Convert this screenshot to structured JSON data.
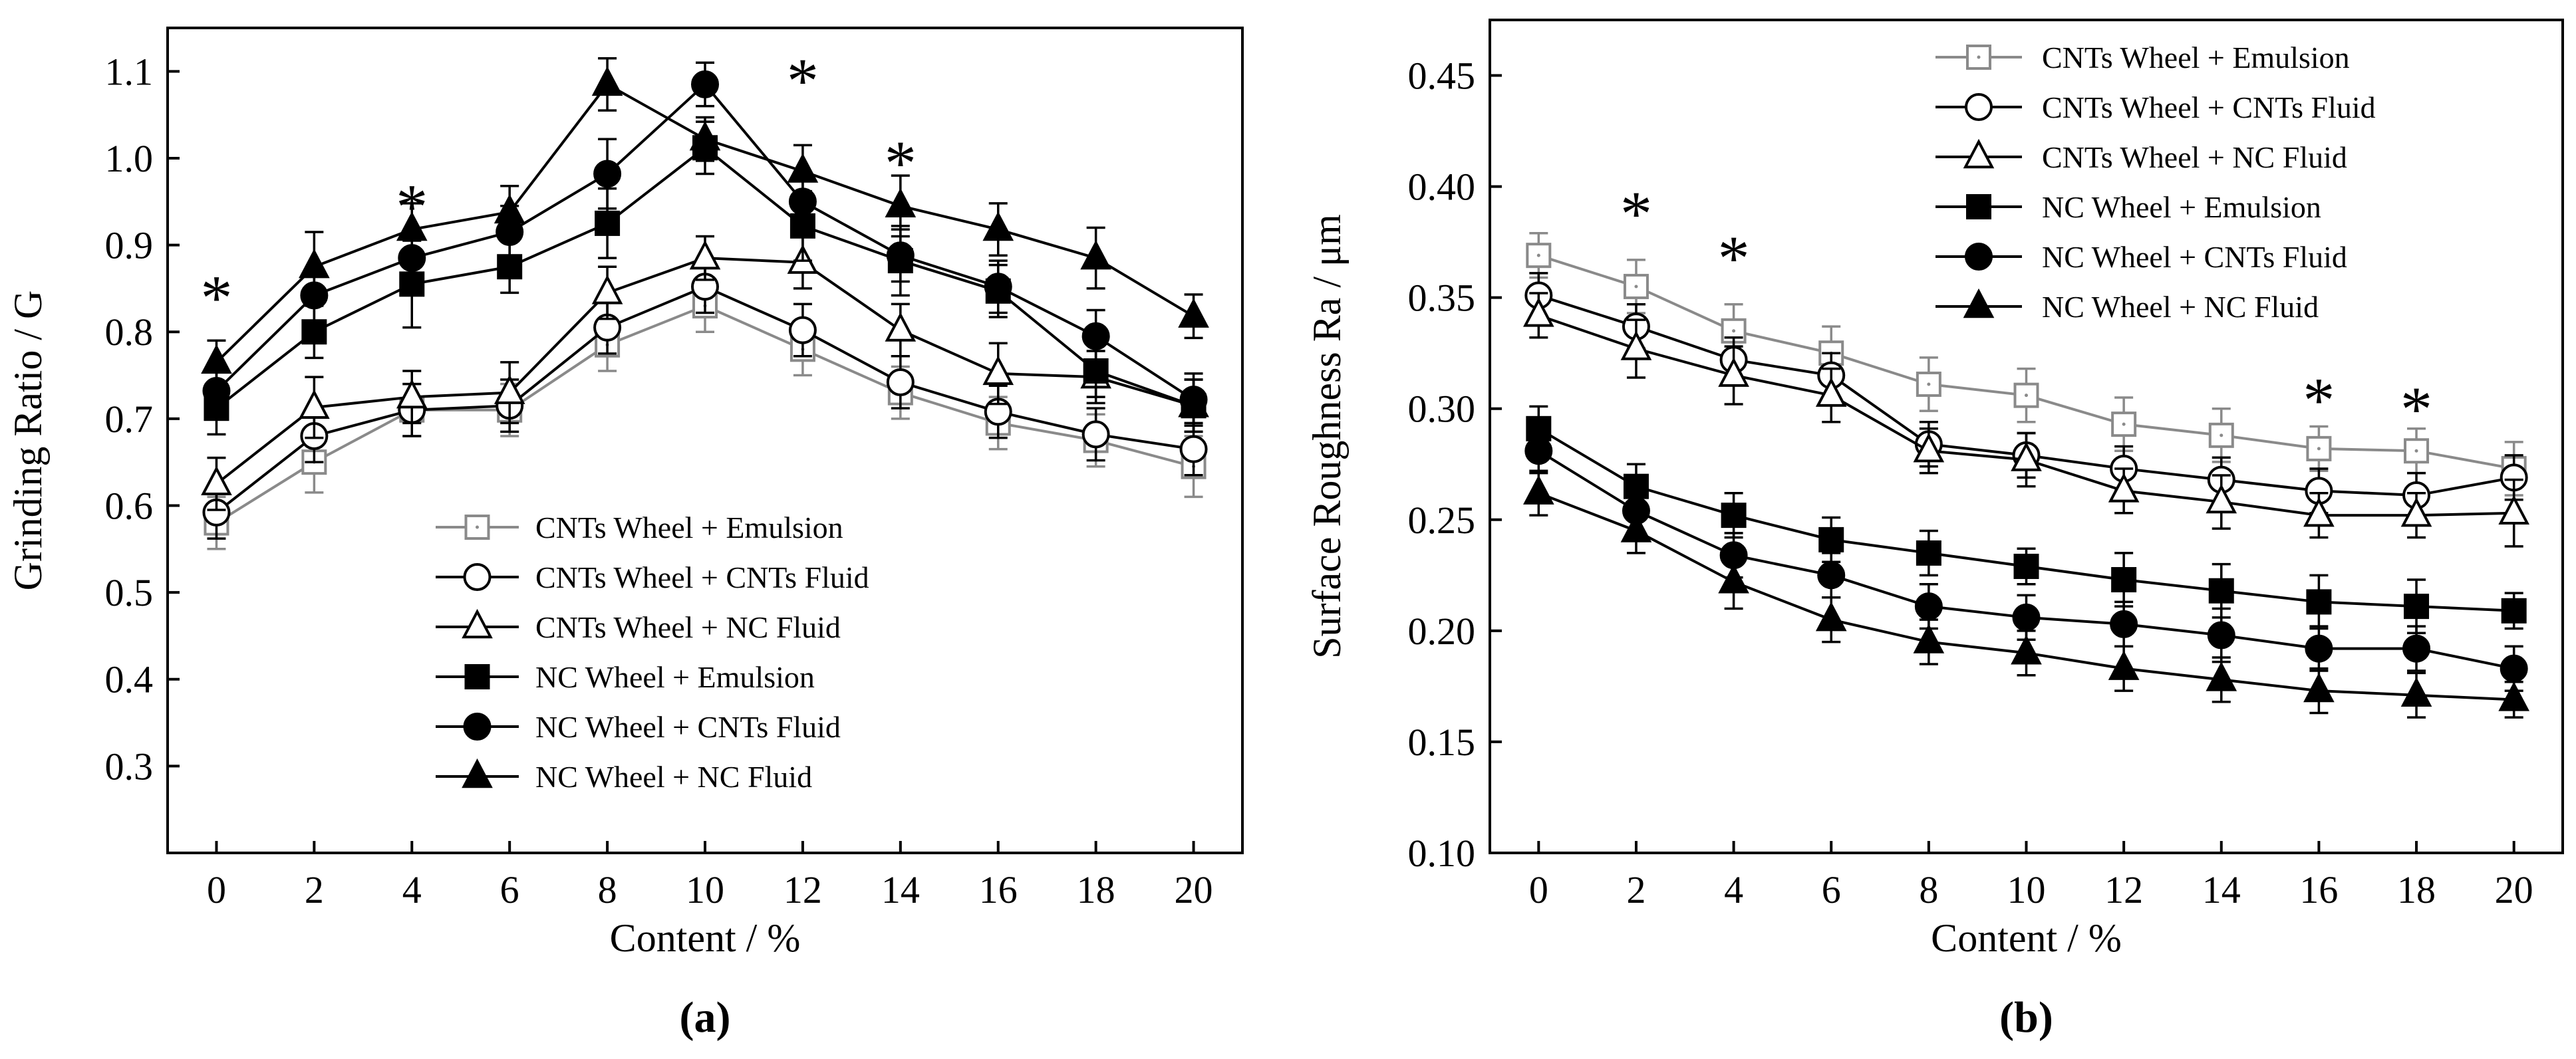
{
  "chart_data": [
    {
      "type": "line",
      "panel_label": "(a)",
      "xlabel": "Content / %",
      "ylabel": "Grinding Ratio / G",
      "xlim": [
        -1,
        21
      ],
      "ylim": [
        0.2,
        1.15
      ],
      "x_ticks": [
        0,
        2,
        4,
        6,
        8,
        10,
        12,
        14,
        16,
        18,
        20
      ],
      "y_ticks": [
        0.3,
        0.4,
        0.5,
        0.6,
        0.7,
        0.8,
        0.9,
        1.0,
        1.1
      ],
      "y_tick_labels": [
        "0.3",
        "0.4",
        "0.5",
        "0.6",
        "0.7",
        "0.8",
        "0.9",
        "1.0",
        "1.1"
      ],
      "legend_position": "bottom-center",
      "significance_label": "*",
      "significance_marks": [
        {
          "x": 0,
          "y": 0.845
        },
        {
          "x": 4,
          "y": 0.95
        },
        {
          "x": 12,
          "y": 1.095
        },
        {
          "x": 14,
          "y": 1.0
        }
      ],
      "x": [
        0,
        2,
        4,
        6,
        8,
        10,
        12,
        14,
        16,
        18,
        20
      ],
      "series": [
        {
          "name": "CNTs Wheel + Emulsion",
          "marker": "square-open",
          "color": "#8a8a8a",
          "values": [
            0.58,
            0.65,
            0.71,
            0.71,
            0.785,
            0.83,
            0.78,
            0.73,
            0.695,
            0.675,
            0.645
          ],
          "errors": [
            0.03,
            0.035,
            0.03,
            0.03,
            0.03,
            0.03,
            0.03,
            0.03,
            0.03,
            0.03,
            0.035
          ]
        },
        {
          "name": "CNTs Wheel + CNTs Fluid",
          "marker": "circle-open",
          "color": "#000000",
          "values": [
            0.592,
            0.68,
            0.71,
            0.715,
            0.805,
            0.852,
            0.802,
            0.742,
            0.708,
            0.682,
            0.665
          ],
          "errors": [
            0.03,
            0.03,
            0.03,
            0.03,
            0.03,
            0.03,
            0.03,
            0.03,
            0.03,
            0.03,
            0.03
          ]
        },
        {
          "name": "CNTs Wheel + NC Fluid",
          "marker": "triangle-open",
          "color": "#000000",
          "values": [
            0.625,
            0.713,
            0.725,
            0.73,
            0.845,
            0.885,
            0.88,
            0.802,
            0.752,
            0.748,
            0.715
          ],
          "errors": [
            0.03,
            0.035,
            0.03,
            0.035,
            0.03,
            0.025,
            0.03,
            0.03,
            0.035,
            0.03,
            0.03
          ]
        },
        {
          "name": "NC Wheel + Emulsion",
          "marker": "square-filled",
          "color": "#000000",
          "values": [
            0.712,
            0.8,
            0.855,
            0.875,
            0.925,
            1.012,
            0.922,
            0.882,
            0.847,
            0.755,
            0.715
          ],
          "errors": [
            0.03,
            0.03,
            0.05,
            0.03,
            0.04,
            0.03,
            0.04,
            0.04,
            0.03,
            0.03,
            0.03
          ]
        },
        {
          "name": "NC Wheel + CNTs Fluid",
          "marker": "circle-filled",
          "color": "#000000",
          "values": [
            0.732,
            0.842,
            0.885,
            0.915,
            0.982,
            1.085,
            0.95,
            0.888,
            0.852,
            0.795,
            0.722
          ],
          "errors": [
            0.03,
            0.03,
            0.03,
            0.03,
            0.04,
            0.025,
            0.03,
            0.03,
            0.03,
            0.03,
            0.03
          ]
        },
        {
          "name": "NC Wheel + NC Fluid",
          "marker": "triangle-filled",
          "color": "#000000",
          "values": [
            0.765,
            0.875,
            0.918,
            0.938,
            1.085,
            1.022,
            0.985,
            0.945,
            0.918,
            0.885,
            0.818
          ],
          "errors": [
            0.025,
            0.04,
            0.03,
            0.03,
            0.03,
            0.025,
            0.03,
            0.035,
            0.03,
            0.035,
            0.025
          ]
        }
      ]
    },
    {
      "type": "line",
      "panel_label": "(b)",
      "xlabel": "Content / %",
      "ylabel": "Surface Roughness  Ra / μm",
      "xlim": [
        -1,
        21
      ],
      "ylim": [
        0.1,
        0.475
      ],
      "x_ticks": [
        0,
        2,
        4,
        6,
        8,
        10,
        12,
        14,
        16,
        18,
        20
      ],
      "y_ticks": [
        0.1,
        0.15,
        0.2,
        0.25,
        0.3,
        0.35,
        0.4,
        0.45
      ],
      "y_tick_labels": [
        "0.10",
        "0.15",
        "0.20",
        "0.25",
        "0.30",
        "0.35",
        "0.40",
        "0.45"
      ],
      "legend_position": "top-right",
      "significance_label": "*",
      "significance_marks": [
        {
          "x": 2,
          "y": 0.39
        },
        {
          "x": 4,
          "y": 0.37
        },
        {
          "x": 16,
          "y": 0.306
        },
        {
          "x": 18,
          "y": 0.302
        }
      ],
      "x": [
        0,
        2,
        4,
        6,
        8,
        10,
        12,
        14,
        16,
        18,
        20
      ],
      "series": [
        {
          "name": "CNTs Wheel + Emulsion",
          "marker": "square-open",
          "color": "#8a8a8a",
          "values": [
            0.369,
            0.355,
            0.335,
            0.325,
            0.311,
            0.306,
            0.293,
            0.288,
            0.282,
            0.281,
            0.273
          ],
          "errors": [
            0.01,
            0.012,
            0.012,
            0.012,
            0.012,
            0.012,
            0.012,
            0.012,
            0.01,
            0.01,
            0.012
          ]
        },
        {
          "name": "CNTs Wheel + CNTs Fluid",
          "marker": "circle-open",
          "color": "#000000",
          "values": [
            0.351,
            0.337,
            0.322,
            0.315,
            0.284,
            0.279,
            0.273,
            0.268,
            0.263,
            0.261,
            0.269
          ],
          "errors": [
            0.01,
            0.01,
            0.01,
            0.01,
            0.01,
            0.01,
            0.01,
            0.01,
            0.01,
            0.01,
            0.01
          ]
        },
        {
          "name": "CNTs Wheel + NC Fluid",
          "marker": "triangle-open",
          "color": "#000000",
          "values": [
            0.342,
            0.327,
            0.315,
            0.306,
            0.281,
            0.277,
            0.263,
            0.258,
            0.252,
            0.252,
            0.253
          ],
          "errors": [
            0.01,
            0.013,
            0.013,
            0.012,
            0.01,
            0.012,
            0.01,
            0.012,
            0.01,
            0.01,
            0.015
          ]
        },
        {
          "name": "NC Wheel + Emulsion",
          "marker": "square-filled",
          "color": "#000000",
          "values": [
            0.291,
            0.265,
            0.252,
            0.241,
            0.235,
            0.229,
            0.223,
            0.218,
            0.213,
            0.211,
            0.209
          ],
          "errors": [
            0.01,
            0.01,
            0.01,
            0.01,
            0.01,
            0.008,
            0.012,
            0.012,
            0.012,
            0.012,
            0.008
          ]
        },
        {
          "name": "NC Wheel + CNTs Fluid",
          "marker": "circle-filled",
          "color": "#000000",
          "values": [
            0.281,
            0.254,
            0.234,
            0.225,
            0.211,
            0.206,
            0.203,
            0.198,
            0.192,
            0.192,
            0.183
          ],
          "errors": [
            0.01,
            0.01,
            0.01,
            0.01,
            0.01,
            0.01,
            0.01,
            0.012,
            0.01,
            0.01,
            0.01
          ]
        },
        {
          "name": "NC Wheel + NC Fluid",
          "marker": "triangle-filled",
          "color": "#000000",
          "values": [
            0.262,
            0.245,
            0.222,
            0.205,
            0.195,
            0.19,
            0.183,
            0.178,
            0.173,
            0.171,
            0.169
          ],
          "errors": [
            0.01,
            0.01,
            0.012,
            0.01,
            0.01,
            0.01,
            0.01,
            0.01,
            0.01,
            0.01,
            0.008
          ]
        }
      ]
    }
  ]
}
